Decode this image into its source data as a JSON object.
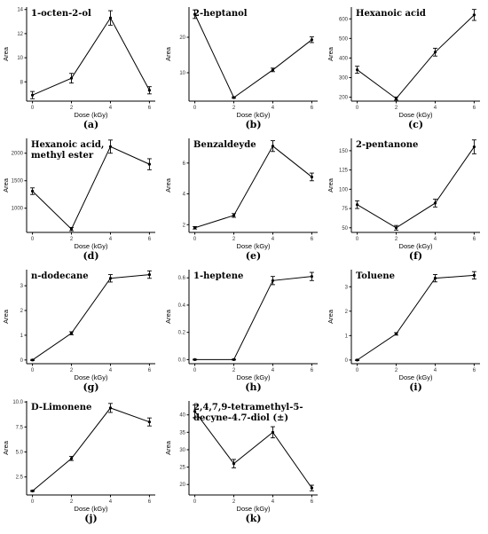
{
  "chart_data": [
    {
      "panel": "(a)",
      "title": [
        "1-octen-2-ol"
      ],
      "type": "line",
      "xlabel": "Dose (kGy)",
      "ylabel": "Area",
      "x": [
        0,
        2,
        4,
        6
      ],
      "values": [
        6.9,
        8.3,
        13.3,
        7.3
      ],
      "errors": [
        0.3,
        0.4,
        0.6,
        0.3
      ],
      "xticks": [
        0,
        2,
        4,
        6
      ],
      "yticks": [
        8,
        10,
        12,
        14
      ],
      "ylim": [
        6.4,
        14.2
      ]
    },
    {
      "panel": "(b)",
      "title": [
        "2-heptanol"
      ],
      "type": "line",
      "xlabel": "Dose (kGy)",
      "ylabel": "Area",
      "x": [
        0,
        2,
        4,
        6
      ],
      "values": [
        26.5,
        3.0,
        10.8,
        19.3
      ],
      "errors": [
        1.2,
        0.2,
        0.5,
        0.8
      ],
      "xticks": [
        0,
        2,
        4,
        6
      ],
      "yticks": [
        10,
        20
      ],
      "ylim": [
        2.0,
        28.5
      ]
    },
    {
      "panel": "(c)",
      "title": [
        "Hexanoic acid"
      ],
      "type": "line",
      "xlabel": "Dose (kGy)",
      "ylabel": "Area",
      "x": [
        0,
        2,
        4,
        6
      ],
      "values": [
        340,
        193,
        430,
        620
      ],
      "errors": [
        18,
        8,
        20,
        28
      ],
      "xticks": [
        0,
        2,
        4,
        6
      ],
      "yticks": [
        200,
        300,
        400,
        500,
        600
      ],
      "ylim": [
        180,
        660
      ]
    },
    {
      "panel": "(d)",
      "title": [
        "Hexanoic acid,",
        "methyl ester"
      ],
      "type": "line",
      "xlabel": "Dose (kGy)",
      "ylabel": "Area",
      "x": [
        0,
        2,
        4,
        6
      ],
      "values": [
        1310,
        620,
        2120,
        1800
      ],
      "errors": [
        60,
        30,
        120,
        100
      ],
      "xticks": [
        0,
        2,
        4,
        6
      ],
      "yticks": [
        1000,
        1500,
        2000
      ],
      "ylim": [
        560,
        2270
      ]
    },
    {
      "panel": "(e)",
      "title": [
        "Benzaldeyde"
      ],
      "type": "line",
      "xlabel": "Dose (kGy)",
      "ylabel": "Area",
      "x": [
        0,
        2,
        4,
        6
      ],
      "values": [
        1.8,
        2.6,
        7.1,
        5.1
      ],
      "errors": [
        0.08,
        0.12,
        0.35,
        0.25
      ],
      "xticks": [
        0,
        2,
        4,
        6
      ],
      "yticks": [
        2,
        4,
        6
      ],
      "ylim": [
        1.5,
        7.6
      ]
    },
    {
      "panel": "(f)",
      "title": [
        "2-pentanone"
      ],
      "type": "line",
      "xlabel": "Dose (kGy)",
      "ylabel": "Area",
      "x": [
        0,
        2,
        4,
        6
      ],
      "values": [
        80,
        50,
        82,
        155
      ],
      "errors": [
        5,
        3,
        5,
        9
      ],
      "xticks": [
        0,
        2,
        4,
        6
      ],
      "yticks": [
        50,
        75,
        100,
        125,
        150
      ],
      "ylim": [
        44,
        166
      ]
    },
    {
      "panel": "(g)",
      "title": [
        "n-dodecane"
      ],
      "type": "line",
      "xlabel": "Dose (kGy)",
      "ylabel": "Area",
      "x": [
        0,
        2,
        4,
        6
      ],
      "values": [
        0.0,
        1.08,
        3.3,
        3.45
      ],
      "errors": [
        0.02,
        0.06,
        0.15,
        0.15
      ],
      "xticks": [
        0,
        2,
        4,
        6
      ],
      "yticks": [
        0,
        1,
        2,
        3
      ],
      "ylim": [
        -0.15,
        3.65
      ]
    },
    {
      "panel": "(h)",
      "title": [
        "1-heptene"
      ],
      "type": "line",
      "xlabel": "Dose (kGy)",
      "ylabel": "Area",
      "x": [
        0,
        2,
        4,
        6
      ],
      "values": [
        0.0,
        0.0,
        0.58,
        0.61
      ],
      "errors": [
        0.003,
        0.003,
        0.03,
        0.03
      ],
      "xticks": [
        0,
        2,
        4,
        6
      ],
      "yticks": [
        0.0,
        0.2,
        0.4,
        0.6
      ],
      "ylim": [
        -0.03,
        0.66
      ]
    },
    {
      "panel": "(i)",
      "title": [
        "Toluene"
      ],
      "type": "line",
      "xlabel": "Dose (kGy)",
      "ylabel": "Area",
      "x": [
        0,
        2,
        4,
        6
      ],
      "values": [
        0.0,
        1.07,
        3.35,
        3.47
      ],
      "errors": [
        0.02,
        0.05,
        0.15,
        0.15
      ],
      "xticks": [
        0,
        2,
        4,
        6
      ],
      "yticks": [
        0,
        1,
        2,
        3
      ],
      "ylim": [
        -0.15,
        3.7
      ]
    },
    {
      "panel": "(j)",
      "title": [
        "D-Limonene"
      ],
      "type": "line",
      "xlabel": "Dose (kGy)",
      "ylabel": "Area",
      "x": [
        0,
        2,
        4,
        6
      ],
      "values": [
        1.1,
        4.35,
        9.4,
        8.0
      ],
      "errors": [
        0.05,
        0.2,
        0.45,
        0.4
      ],
      "xticks": [
        0,
        2,
        4,
        6
      ],
      "yticks": [
        2.5,
        5.0,
        7.5,
        10.0
      ],
      "ylim": [
        0.7,
        10.1
      ]
    },
    {
      "panel": "(k)",
      "title": [
        "2,4,7,9-tetramethyl-5-",
        "decyne-4.7-diol (±)"
      ],
      "type": "line",
      "xlabel": "Dose (kGy)",
      "ylabel": "Area",
      "x": [
        0,
        2,
        4,
        6
      ],
      "values": [
        41,
        26,
        35,
        19
      ],
      "errors": [
        1.8,
        1.2,
        1.6,
        0.8
      ],
      "xticks": [
        0,
        2,
        4,
        6
      ],
      "yticks": [
        20,
        25,
        30,
        35,
        40
      ],
      "ylim": [
        17,
        44
      ]
    }
  ]
}
